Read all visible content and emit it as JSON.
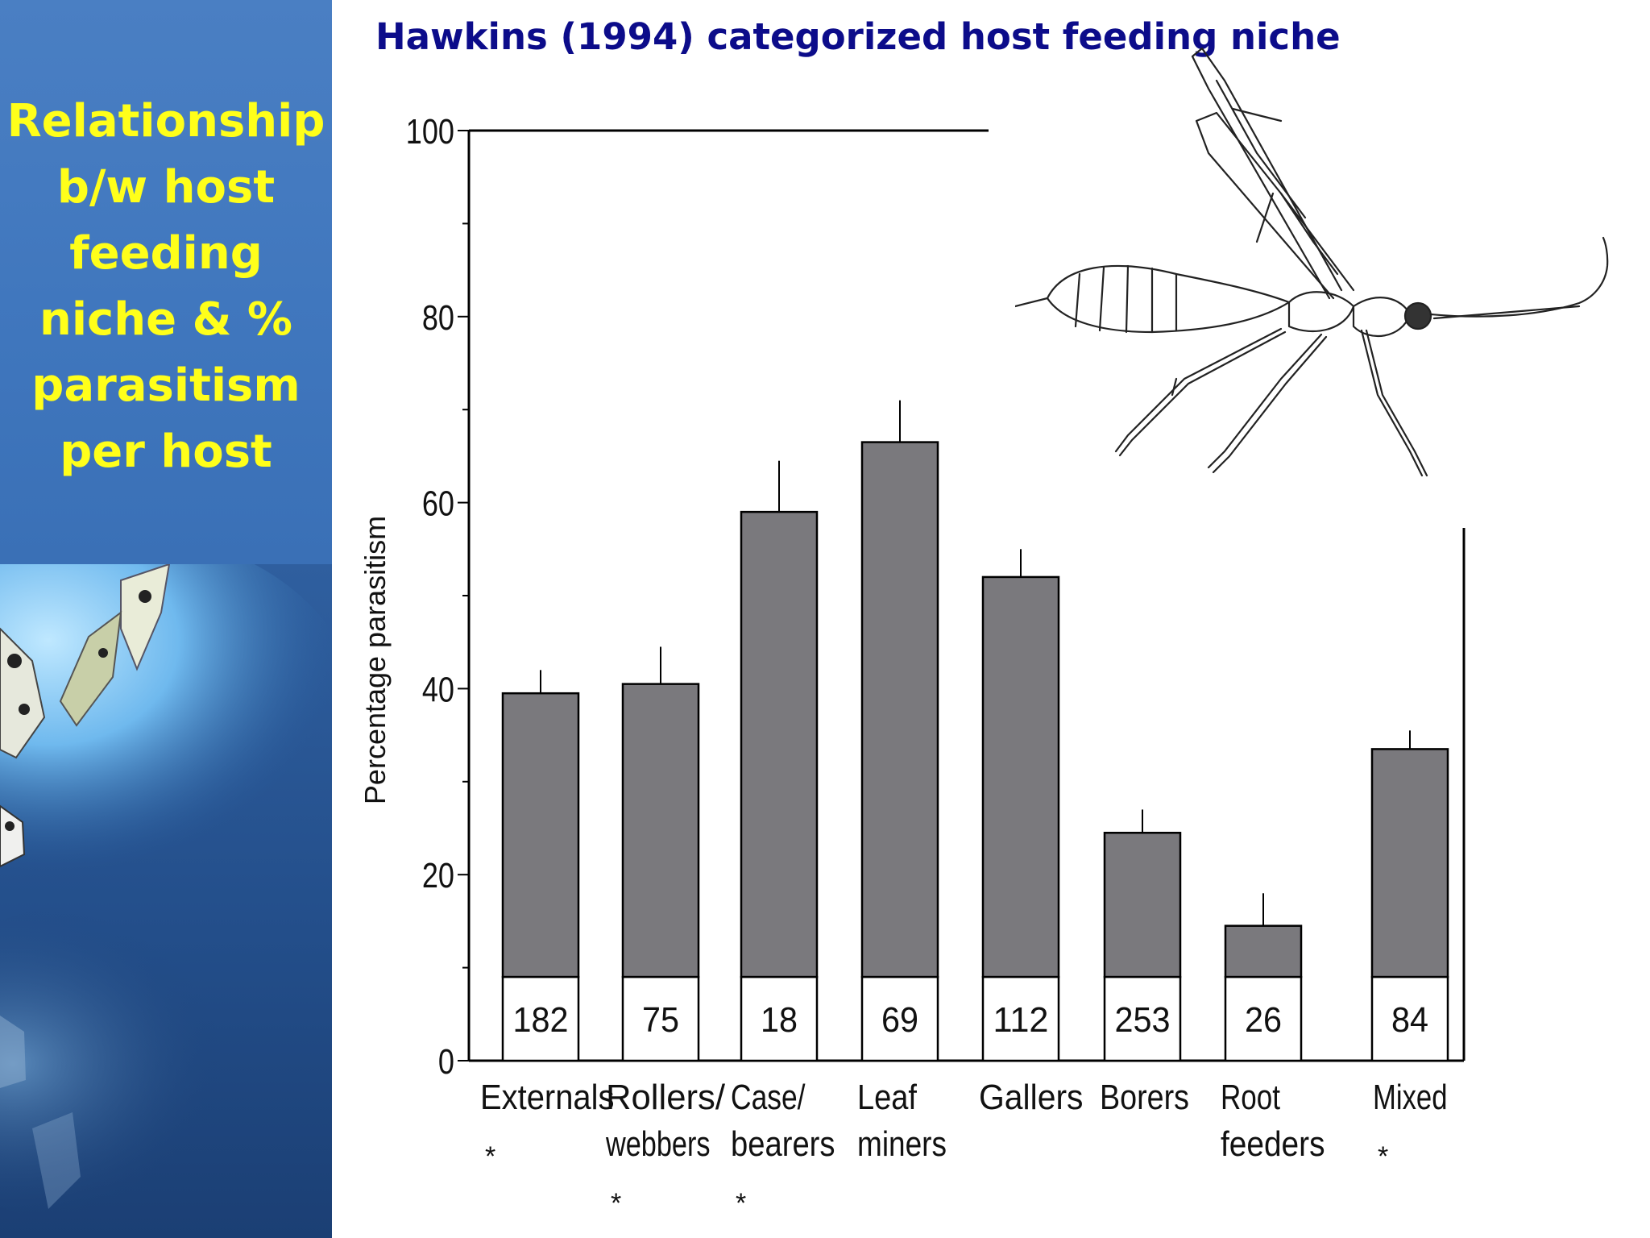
{
  "slide": {
    "title": "Hawkins (1994) categorized host feeding niche",
    "sidebar_title_lines": [
      "Relationship",
      "b/w host",
      "feeding",
      "niche & %",
      "parasitism",
      "per host"
    ]
  },
  "colors": {
    "sidebar_top": "#4a7fc3",
    "sidebar_bottom": "#234e8a",
    "sidebar_text": "#ffff1a",
    "title_text": "#0c0c8a",
    "bar_fill": "#7a797d",
    "axis": "#000000"
  },
  "icons": {
    "illustration": "parasitoid-wasp-drawing",
    "background": "butterflies-photo"
  },
  "chart_data": {
    "type": "bar",
    "xlabel": "",
    "ylabel": "Percentage parasitism",
    "ylim": [
      0,
      100
    ],
    "yticks": [
      0,
      20,
      40,
      60,
      80,
      100
    ],
    "grid": false,
    "categories": [
      {
        "lines": [
          "Externals",
          "*"
        ]
      },
      {
        "lines": [
          "Rollers/",
          "webbers",
          "*"
        ]
      },
      {
        "lines": [
          "Case/",
          "bearers",
          "*"
        ]
      },
      {
        "lines": [
          "Leaf",
          "miners"
        ]
      },
      {
        "lines": [
          "Gallers"
        ]
      },
      {
        "lines": [
          "Borers"
        ]
      },
      {
        "lines": [
          "Root",
          "feeders"
        ]
      },
      {
        "lines": [
          "Mixed",
          "*"
        ]
      }
    ],
    "values": [
      39.5,
      40.5,
      59,
      66.5,
      52,
      24.5,
      14.5,
      33.5
    ],
    "error_upper": [
      42,
      44.5,
      64.5,
      71,
      55,
      27,
      18,
      35.5
    ],
    "sample_sizes": [
      "182",
      "75",
      "18",
      "69",
      "112",
      "253",
      "26",
      "84"
    ]
  }
}
